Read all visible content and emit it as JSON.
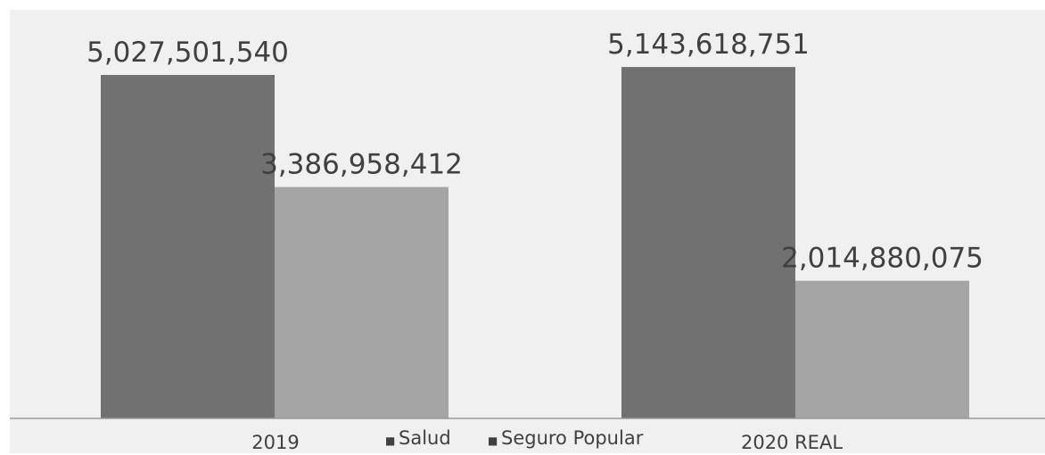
{
  "chart_data": {
    "type": "bar",
    "title": "",
    "xlabel": "",
    "ylabel": "",
    "categories": [
      "2019",
      "2020 REAL"
    ],
    "series": [
      {
        "name": "Salud",
        "color": "#717171",
        "values": [
          5027501540,
          5143618751
        ],
        "labels": [
          "5,027,501,540",
          "5,143,618,751"
        ]
      },
      {
        "name": "Seguro Popular",
        "color": "#a5a5a5",
        "values": [
          3386958412,
          2014880075
        ],
        "labels": [
          "3,386,958,412",
          "2,014,880,075"
        ]
      }
    ],
    "ylim": [
      0,
      5600000000
    ],
    "grid": false,
    "legend": "bottom-center",
    "legend_marker": "■"
  }
}
